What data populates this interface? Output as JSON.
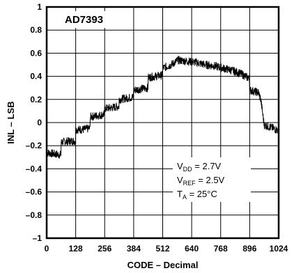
{
  "chart_data": {
    "type": "line",
    "title": "AD7393",
    "xlabel": "CODE – Decimal",
    "ylabel": "INL – LSB",
    "xlim": [
      0,
      1024
    ],
    "ylim": [
      -1,
      1
    ],
    "xticks": [
      0,
      128,
      256,
      384,
      512,
      640,
      768,
      896,
      1024
    ],
    "yticks": [
      1,
      0.8,
      0.6,
      0.4,
      0.2,
      0,
      -0.2,
      -0.4,
      -0.6,
      -0.8,
      -1
    ],
    "ytick_labels": [
      "1",
      "0.8",
      "0.6",
      "0.4",
      "0.2",
      "0",
      "–0.2",
      "–0.4",
      "–0.6",
      "–0.8",
      "–1"
    ],
    "grid": true,
    "annotations": [
      {
        "main": "V",
        "sub": "DD",
        "rest": " = 2.7V"
      },
      {
        "main": "V",
        "sub": "REF",
        "rest": " = 2.5V"
      },
      {
        "main": "T",
        "sub": "A",
        "rest": " = 25°C"
      }
    ],
    "series": [
      {
        "x": [
          0,
          30,
          63,
          64,
          100,
          127,
          128,
          160,
          191,
          192,
          225,
          255,
          256,
          290,
          319,
          320,
          350,
          383,
          384,
          410,
          447,
          448,
          480,
          511,
          512,
          550,
          580,
          620,
          660,
          700,
          740,
          780,
          820,
          860,
          895,
          896,
          915,
          935,
          945,
          960,
          1000,
          1023
        ],
        "y": [
          -0.26,
          -0.27,
          -0.28,
          -0.17,
          -0.16,
          -0.16,
          -0.06,
          -0.06,
          -0.05,
          0.05,
          0.06,
          0.07,
          0.12,
          0.13,
          0.14,
          0.2,
          0.21,
          0.22,
          0.28,
          0.29,
          0.3,
          0.39,
          0.4,
          0.41,
          0.47,
          0.5,
          0.54,
          0.53,
          0.52,
          0.5,
          0.49,
          0.47,
          0.45,
          0.42,
          0.38,
          0.28,
          0.27,
          0.26,
          0.2,
          -0.02,
          -0.05,
          -0.07
        ]
      }
    ]
  }
}
